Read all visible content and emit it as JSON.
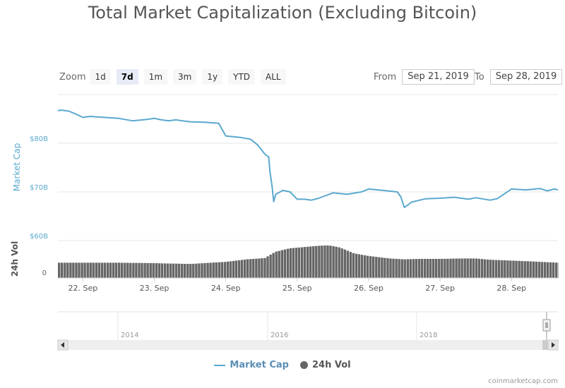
{
  "title": "Total Market Capitalization (Excluding Bitcoin)",
  "zoom": {
    "label": "Zoom",
    "buttons": [
      "1d",
      "7d",
      "1m",
      "3m",
      "1y",
      "YTD",
      "ALL"
    ],
    "active": "7d"
  },
  "range": {
    "from_label": "From",
    "from": "Sep 21, 2019",
    "to_label": "To",
    "to": "Sep 28, 2019"
  },
  "legend": {
    "market_cap": "Market Cap",
    "vol": "24h Vol"
  },
  "credit": "coinmarketcap.com",
  "colors": {
    "line": "#5aa9cf",
    "volume": "#666666",
    "axis_text": "#5aa9cf"
  },
  "chart_data": {
    "type": "line",
    "title": "Total Market Capitalization (Excluding Bitcoin)",
    "ylabel": "Market Cap",
    "y2label": "24h Vol",
    "ylim": [
      60,
      90
    ],
    "y_ticks": [
      "$60B",
      "$70B",
      "$80B"
    ],
    "y_tick_values": [
      60,
      70,
      80
    ],
    "vol_ticks": [
      "0"
    ],
    "x_ticks": [
      "22. Sep",
      "23. Sep",
      "24. Sep",
      "25. Sep",
      "26. Sep",
      "27. Sep",
      "28. Sep"
    ],
    "x_tick_values": [
      22,
      23,
      24,
      25,
      26,
      27,
      28
    ],
    "xlim": [
      21.65,
      28.65
    ],
    "series": [
      {
        "name": "Market Cap",
        "x": [
          21.65,
          21.7,
          21.8,
          21.9,
          22.0,
          22.1,
          22.2,
          22.3,
          22.5,
          22.7,
          22.9,
          23.0,
          23.1,
          23.2,
          23.3,
          23.5,
          23.7,
          23.9,
          24.0,
          24.2,
          24.35,
          24.45,
          24.55,
          24.6,
          24.62,
          24.65,
          24.67,
          24.7,
          24.8,
          24.9,
          25.0,
          25.1,
          25.2,
          25.3,
          25.5,
          25.7,
          25.9,
          26.0,
          26.2,
          26.4,
          26.45,
          26.5,
          26.55,
          26.6,
          26.8,
          27.0,
          27.2,
          27.4,
          27.5,
          27.7,
          27.8,
          28.0,
          28.2,
          28.4,
          28.5,
          28.6,
          28.65
        ],
        "values": [
          86.7,
          86.8,
          86.6,
          86.0,
          85.3,
          85.5,
          85.4,
          85.3,
          85.1,
          84.6,
          84.9,
          85.1,
          84.8,
          84.6,
          84.8,
          84.4,
          84.3,
          84.1,
          81.5,
          81.2,
          80.8,
          79.6,
          77.7,
          77.2,
          74.0,
          71.0,
          68.0,
          69.5,
          70.3,
          70.0,
          68.5,
          68.5,
          68.3,
          68.7,
          69.8,
          69.5,
          70.0,
          70.6,
          70.3,
          70.0,
          69.0,
          66.8,
          67.3,
          67.9,
          68.6,
          68.7,
          68.9,
          68.5,
          68.8,
          68.3,
          68.6,
          70.6,
          70.4,
          70.7,
          70.2,
          70.6,
          70.4
        ]
      },
      {
        "name": "24h Vol",
        "x": [
          21.65,
          22.0,
          22.5,
          23.0,
          23.5,
          24.0,
          24.3,
          24.55,
          24.7,
          24.9,
          25.1,
          25.3,
          25.45,
          25.6,
          25.8,
          26.0,
          26.3,
          26.5,
          26.7,
          27.0,
          27.3,
          27.5,
          27.7,
          28.0,
          28.3,
          28.65
        ],
        "values": [
          0.36,
          0.36,
          0.36,
          0.35,
          0.33,
          0.38,
          0.44,
          0.47,
          0.62,
          0.7,
          0.73,
          0.76,
          0.77,
          0.72,
          0.58,
          0.52,
          0.46,
          0.44,
          0.45,
          0.45,
          0.46,
          0.46,
          0.43,
          0.41,
          0.39,
          0.36
        ]
      }
    ],
    "navigator": {
      "labels": [
        "2014",
        "2016",
        "2018"
      ]
    }
  }
}
